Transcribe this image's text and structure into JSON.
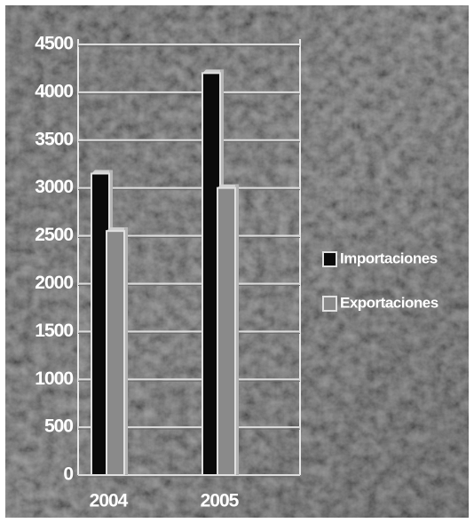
{
  "chart_data": {
    "type": "bar",
    "categories": [
      "2004",
      "2005"
    ],
    "series": [
      {
        "name": "Importaciones",
        "color": "#0a0a0a",
        "values": [
          3150,
          4200
        ]
      },
      {
        "name": "Exportaciones",
        "color": "#8a8a8a",
        "values": [
          2550,
          3000
        ]
      }
    ],
    "ylim": [
      0,
      4500
    ],
    "yticks": [
      0,
      500,
      1000,
      1500,
      2000,
      2500,
      3000,
      3500,
      4000,
      4500
    ],
    "grid": true,
    "legend": "right"
  }
}
